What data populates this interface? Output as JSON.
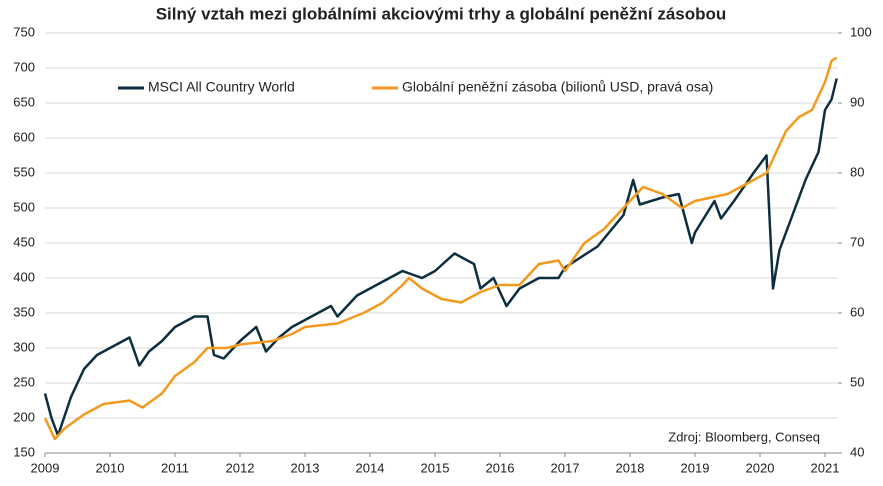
{
  "chart_data": {
    "type": "line",
    "title": "Silný vztah mezi globálními akciovými trhy a globální peněžní zásobou",
    "annotation": "Zdroj: Bloomberg, Conseq",
    "xlim": [
      2009,
      2021.2
    ],
    "xticks": [
      2009,
      2010,
      2011,
      2012,
      2013,
      2014,
      2015,
      2016,
      2017,
      2018,
      2019,
      2020,
      2021
    ],
    "ylim": [
      150,
      750
    ],
    "yticks": [
      150,
      200,
      250,
      300,
      350,
      400,
      450,
      500,
      550,
      600,
      650,
      700,
      750
    ],
    "y2lim": [
      40,
      100
    ],
    "y2ticks": [
      40,
      50,
      60,
      70,
      80,
      90,
      100
    ],
    "grid": true,
    "legend": "top",
    "series": [
      {
        "name": "MSCI All Country World",
        "color": "#0d2e3f",
        "x": [
          2009.0,
          2009.1,
          2009.2,
          2009.4,
          2009.6,
          2009.8,
          2010.0,
          2010.3,
          2010.45,
          2010.6,
          2010.8,
          2011.0,
          2011.3,
          2011.5,
          2011.6,
          2011.75,
          2012.0,
          2012.25,
          2012.4,
          2012.6,
          2012.8,
          2013.0,
          2013.4,
          2013.5,
          2013.8,
          2014.0,
          2014.5,
          2014.8,
          2015.0,
          2015.3,
          2015.6,
          2015.7,
          2015.9,
          2016.1,
          2016.3,
          2016.6,
          2016.9,
          2017.0,
          2017.5,
          2017.9,
          2018.05,
          2018.15,
          2018.5,
          2018.75,
          2018.95,
          2019.0,
          2019.3,
          2019.4,
          2019.6,
          2019.9,
          2020.1,
          2020.2,
          2020.3,
          2020.5,
          2020.7,
          2020.75,
          2020.9,
          2021.0,
          2021.1,
          2021.18
        ],
        "values": [
          235,
          200,
          175,
          230,
          270,
          290,
          300,
          315,
          275,
          295,
          310,
          330,
          345,
          345,
          290,
          285,
          310,
          330,
          295,
          315,
          330,
          340,
          360,
          345,
          375,
          385,
          410,
          400,
          410,
          435,
          420,
          385,
          400,
          360,
          385,
          400,
          400,
          415,
          445,
          490,
          540,
          505,
          515,
          520,
          450,
          465,
          510,
          485,
          510,
          550,
          575,
          385,
          440,
          490,
          540,
          550,
          580,
          640,
          655,
          685
        ]
      },
      {
        "name": "Globální peněžní zásoba (bilionů USD, pravá osa)",
        "color": "#f39a1e",
        "axis": "y2",
        "x": [
          2009.0,
          2009.15,
          2009.3,
          2009.6,
          2009.9,
          2010.3,
          2010.5,
          2010.8,
          2011.0,
          2011.3,
          2011.5,
          2011.8,
          2012.0,
          2012.5,
          2012.8,
          2013.0,
          2013.5,
          2013.9,
          2014.2,
          2014.5,
          2014.6,
          2014.8,
          2015.1,
          2015.4,
          2015.7,
          2016.0,
          2016.3,
          2016.6,
          2016.9,
          2017.0,
          2017.3,
          2017.6,
          2017.9,
          2018.2,
          2018.5,
          2018.8,
          2019.0,
          2019.5,
          2019.9,
          2020.1,
          2020.2,
          2020.4,
          2020.6,
          2020.8,
          2021.0,
          2021.1,
          2021.18
        ],
        "values": [
          45,
          42,
          43.5,
          45.5,
          47,
          47.5,
          46.5,
          48.5,
          51,
          53,
          55,
          55,
          55.5,
          56,
          57,
          58,
          58.5,
          60,
          61.5,
          64,
          65,
          63.5,
          62,
          61.5,
          63,
          64,
          64,
          67,
          67.5,
          66,
          70,
          72,
          75,
          78,
          77,
          75,
          76,
          77,
          79,
          80,
          82,
          86,
          88,
          89,
          93,
          96,
          96.5
        ]
      }
    ]
  }
}
